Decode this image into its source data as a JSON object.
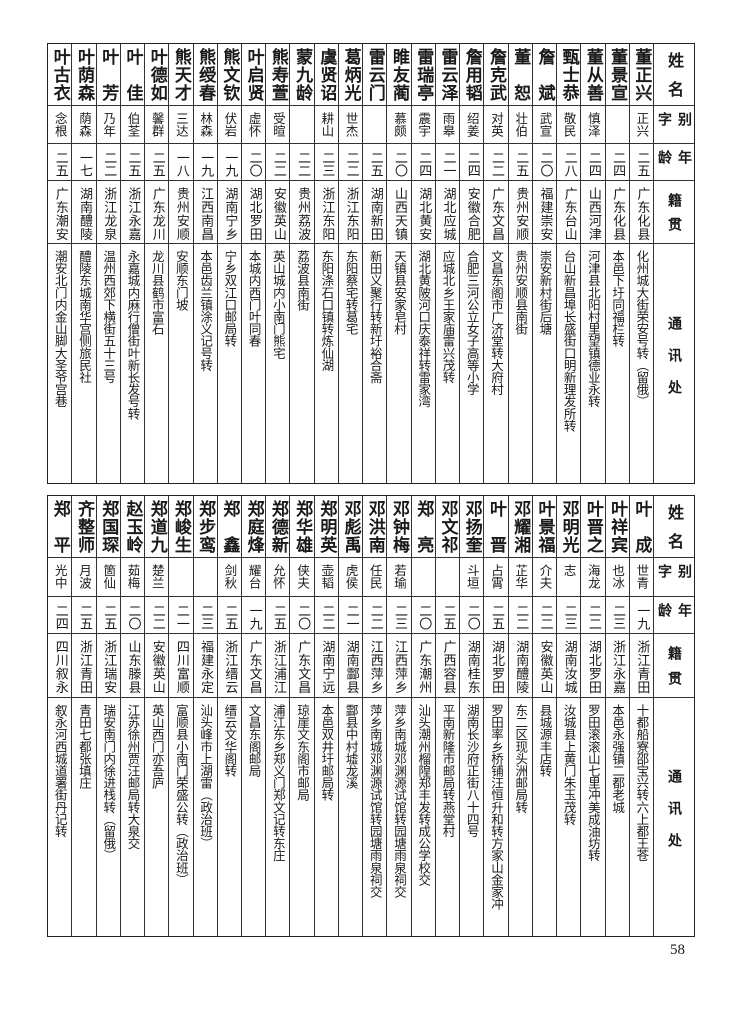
{
  "header": {
    "name": "姓名",
    "alias": "别字",
    "age": "年龄",
    "origin": "籍贯",
    "address": "通讯处"
  },
  "top_table": [
    {
      "name": "董正兴",
      "alias": "正兴",
      "age": "二五",
      "origin": "广东化县",
      "address": "化州城大街荣安号转（留俄）"
    },
    {
      "name": "董景宣",
      "alias": "",
      "age": "二四",
      "origin": "广东化县",
      "address": "本邑下圩同福栏转"
    },
    {
      "name": "董从善",
      "alias": "慎泽",
      "age": "二四",
      "origin": "山西河津",
      "address": "河津县北阳村里望镇德业永转"
    },
    {
      "name": "甄士恭",
      "alias": "敬民",
      "age": "二八",
      "origin": "广东台山",
      "address": "台山新昌埠长盛街口明新理发所转"
    },
    {
      "name": "詹斌",
      "alias": "武宣",
      "age": "二〇",
      "origin": "福建崇安",
      "address": "崇安新村街后塘"
    },
    {
      "name": "董恕",
      "alias": "壮伯",
      "age": "二五",
      "origin": "贵州安顺",
      "address": "贵州安顺县南街"
    },
    {
      "name": "詹克武",
      "alias": "对英",
      "age": "二二",
      "origin": "广东文昌",
      "address": "文昌东阁市广济堂转大府村"
    },
    {
      "name": "詹用韬",
      "alias": "绍姜",
      "age": "二四",
      "origin": "安徽合肥",
      "address": "合肥三河公立女子高等小学"
    },
    {
      "name": "雷云泽",
      "alias": "雨皋",
      "age": "二一",
      "origin": "湖北应城",
      "address": "应城北乡王家庙雷兴茂转"
    },
    {
      "name": "雷瑞亭",
      "alias": "震宇",
      "age": "二四",
      "origin": "湖北黄安",
      "address": "湖北黄陂河口庆泰祥转雷家湾"
    },
    {
      "name": "睢友蔺",
      "alias": "慕颇",
      "age": "二〇",
      "origin": "山西天镇",
      "address": "天镇县安家皂村"
    },
    {
      "name": "雷云门",
      "alias": "",
      "age": "二五",
      "origin": "湖南新田",
      "address": "新田义聚行转新圩裕合斋"
    },
    {
      "name": "葛炳光",
      "alias": "世杰",
      "age": "二二",
      "origin": "浙江东阳",
      "address": "东阳蔡宅转葛宅"
    },
    {
      "name": "虞贤诏",
      "alias": "耕山",
      "age": "二三",
      "origin": "浙江东阳",
      "address": "东阳涤石口镇转炼仙湖"
    },
    {
      "name": "蒙九龄",
      "alias": "",
      "age": "二二",
      "origin": "贵州荔波",
      "address": "荔波县南街"
    },
    {
      "name": "熊寿萱",
      "alias": "受暄",
      "age": "二二",
      "origin": "安徽英山",
      "address": "英山城内小南门熊宅"
    },
    {
      "name": "叶启贤",
      "alias": "虚怀",
      "age": "二〇",
      "origin": "湖北罗田",
      "address": "本城内西门叶同春"
    },
    {
      "name": "熊文钦",
      "alias": "伏岩",
      "age": "一九",
      "origin": "湖南宁乡",
      "address": "宁乡双江口邮局转"
    },
    {
      "name": "熊绶春",
      "alias": "林森",
      "age": "一九",
      "origin": "江西南昌",
      "address": "本邑齿兰镇涂义记号转"
    },
    {
      "name": "熊天才",
      "alias": "三达",
      "age": "一八",
      "origin": "贵州安顺",
      "address": "安顺东门坡"
    },
    {
      "name": "叶德如",
      "alias": "馨群",
      "age": "二五",
      "origin": "广东龙川",
      "address": "龙川县鹤市富石"
    },
    {
      "name": "叶佳",
      "alias": "伯荃",
      "age": "二五",
      "origin": "浙江永嘉",
      "address": "永嘉城内麻行僧街叶新长发号转"
    },
    {
      "name": "叶芳",
      "alias": "乃年",
      "age": "二二",
      "origin": "浙江龙泉",
      "address": "温州西郊下横街五十三号"
    },
    {
      "name": "叶荫森",
      "alias": "荫森",
      "age": "一七",
      "origin": "湖南醴陵",
      "address": "醴陵东城南华宫侧旅民社"
    },
    {
      "name": "叶古衣",
      "alias": "念根",
      "age": "二五",
      "origin": "广东潮安",
      "address": "潮安北门内金山脚大圣爷宫巷"
    }
  ],
  "bottom_table": [
    {
      "name": "叶成",
      "alias": "世青",
      "age": "一九",
      "origin": "浙江青田",
      "address": "十都船寮邵宝兴转六上都王苍"
    },
    {
      "name": "叶祥宾",
      "alias": "也冰",
      "age": "二三",
      "origin": "浙江永嘉",
      "address": "本邑永强镇二都老城"
    },
    {
      "name": "叶晋之",
      "alias": "海龙",
      "age": "二二",
      "origin": "湖北罗田",
      "address": "罗田滚滚山七里冲美成油坊转"
    },
    {
      "name": "邓明光",
      "alias": "志",
      "age": "二三",
      "origin": "湖南汝城",
      "address": "汝城县上黄门朱玉茂转"
    },
    {
      "name": "叶景福",
      "alias": "介夫",
      "age": "二二",
      "origin": "安徽英山",
      "address": "县城源丰店转"
    },
    {
      "name": "邓耀湘",
      "alias": "芷华",
      "age": "二二",
      "origin": "湖南醴陵",
      "address": "东二区现头洲邮局转"
    },
    {
      "name": "叶晋",
      "alias": "占霄",
      "age": "二五",
      "origin": "湖北罗田",
      "address": "罗田率乡桥铺汪恒升和转方家山金家冲"
    },
    {
      "name": "邓扬奎",
      "alias": "斗垣",
      "age": "二〇",
      "origin": "湖南桂东",
      "address": "湖南长沙府正街八十四号"
    },
    {
      "name": "邓文祁",
      "alias": "",
      "age": "二五",
      "origin": "广西容县",
      "address": "平南新隆市邮局转燕堂村"
    },
    {
      "name": "郑亮",
      "alias": "",
      "age": "二〇",
      "origin": "广东潮州",
      "address": "汕头潮州榴隍郑丰发转成公学校交"
    },
    {
      "name": "邓钟梅",
      "alias": "若瑜",
      "age": "二三",
      "origin": "江西萍乡",
      "address": "萍乡南城邓渊源试馆转园塘雨泉祠交"
    },
    {
      "name": "邓洪南",
      "alias": "任民",
      "age": "二二",
      "origin": "江西萍乡",
      "address": "萍乡南城邓渊源试馆转园塘雨泉祠交"
    },
    {
      "name": "邓彪禹",
      "alias": "虎侯",
      "age": "二一",
      "origin": "湖南酃县",
      "address": "酃县中村墟龙溪"
    },
    {
      "name": "郑明英",
      "alias": "壶韬",
      "age": "二二",
      "origin": "湖南宁远",
      "address": "本邑双井圩邮局转"
    },
    {
      "name": "郑华雄",
      "alias": "侠夫",
      "age": "二〇",
      "origin": "广东文昌",
      "address": "琼崖文东阁市邮局"
    },
    {
      "name": "郑德新",
      "alias": "允怀",
      "age": "二五",
      "origin": "浙江浦江",
      "address": "浦江东乡郑义门郑文记转东庄"
    },
    {
      "name": "郑庭烽",
      "alias": "耀台",
      "age": "一九",
      "origin": "广东文昌",
      "address": "文昌东阁邮局"
    },
    {
      "name": "郑鑫",
      "alias": "剑秋",
      "age": "二五",
      "origin": "浙江缙云",
      "address": "缙云文华阁转"
    },
    {
      "name": "郑步鸾",
      "alias": "",
      "age": "二三",
      "origin": "福建永定",
      "address": "汕头峰市上湖雷（政治班）"
    },
    {
      "name": "郑峻生",
      "alias": "",
      "age": "二一",
      "origin": "四川富顺",
      "address": "富顺县小南门荣盛公转（政治班）"
    },
    {
      "name": "郑道九",
      "alias": "楚兰",
      "age": "二二",
      "origin": "安徽英山",
      "address": "英山西门亦吾庐"
    },
    {
      "name": "赵玉岭",
      "alias": "茹梅",
      "age": "二〇",
      "origin": "山东滕县",
      "address": "江苏徐州贾汪邮局转大泉交"
    },
    {
      "name": "郑国琛",
      "alias": "箇仙",
      "age": "二五",
      "origin": "浙江瑞安",
      "address": "瑞安南门内徐进栈转（留俄）"
    },
    {
      "name": "齐整师",
      "alias": "月波",
      "age": "二五",
      "origin": "浙江青田",
      "address": "青田七都张填庄"
    },
    {
      "name": "郑平",
      "alias": "光中",
      "age": "二四",
      "origin": "四川叙永",
      "address": "叙永河西城道署街丹记转"
    }
  ],
  "page_number": "58"
}
